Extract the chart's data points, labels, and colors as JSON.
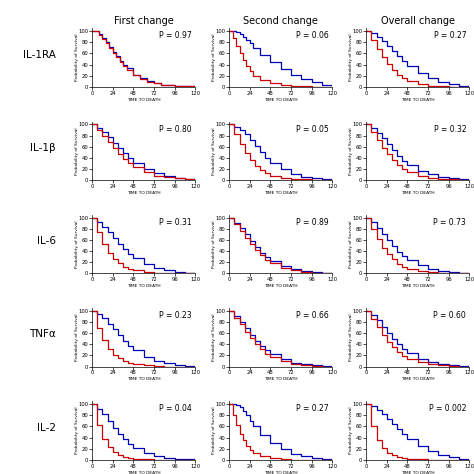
{
  "col_headers": [
    "First change",
    "Second change",
    "Overall change"
  ],
  "row_labels": [
    "IL-1RA",
    "IL-1β",
    "IL-6",
    "TNFα",
    "IL-2"
  ],
  "p_values": [
    [
      "P = 0.97",
      "P = 0.06",
      "P = 0.27"
    ],
    [
      "P = 0.80",
      "P = 0.05",
      "P = 0.32"
    ],
    [
      "P = 0.31",
      "P = 0.89",
      "P = 0.73"
    ],
    [
      "P = 0.23",
      "P = 0.66",
      "P = 0.60"
    ],
    [
      "P = 0.04",
      "P = 0.27",
      "P = 0.002"
    ]
  ],
  "blue_color": "#0000BB",
  "red_color": "#CC0000",
  "curves": {
    "IL-1RA_First": {
      "blue_x": [
        0,
        8,
        12,
        16,
        20,
        24,
        28,
        32,
        36,
        40,
        48,
        56,
        64,
        72,
        80,
        96,
        120
      ],
      "blue_y": [
        100,
        95,
        88,
        80,
        72,
        63,
        55,
        47,
        40,
        33,
        22,
        15,
        10,
        7,
        4,
        2,
        1
      ],
      "red_x": [
        0,
        8,
        12,
        16,
        20,
        24,
        28,
        32,
        36,
        40,
        48,
        56,
        64,
        72,
        80,
        96,
        120
      ],
      "red_y": [
        100,
        93,
        86,
        78,
        70,
        61,
        53,
        45,
        38,
        31,
        21,
        14,
        9,
        6,
        4,
        2,
        1
      ]
    },
    "IL-1RA_Second": {
      "blue_x": [
        0,
        4,
        8,
        12,
        16,
        20,
        24,
        28,
        36,
        48,
        60,
        72,
        84,
        96,
        108,
        120
      ],
      "blue_y": [
        100,
        100,
        98,
        95,
        90,
        84,
        78,
        70,
        58,
        45,
        32,
        22,
        14,
        8,
        4,
        2
      ],
      "red_x": [
        0,
        4,
        8,
        12,
        16,
        20,
        24,
        28,
        36,
        48,
        60,
        72,
        84,
        96,
        108,
        120
      ],
      "red_y": [
        100,
        88,
        74,
        60,
        48,
        38,
        28,
        20,
        12,
        6,
        3,
        1,
        1,
        0,
        0,
        0
      ]
    },
    "IL-1RA_Overall": {
      "blue_x": [
        0,
        6,
        12,
        18,
        24,
        30,
        36,
        42,
        48,
        60,
        72,
        84,
        96,
        108,
        120
      ],
      "blue_y": [
        100,
        96,
        90,
        83,
        74,
        65,
        55,
        46,
        37,
        24,
        15,
        9,
        5,
        2,
        1
      ],
      "red_x": [
        0,
        6,
        12,
        18,
        24,
        30,
        36,
        42,
        48,
        60,
        72,
        84,
        96,
        108,
        120
      ],
      "red_y": [
        100,
        84,
        68,
        54,
        41,
        31,
        22,
        15,
        10,
        5,
        2,
        1,
        0,
        0,
        0
      ]
    },
    "IL-1b_First": {
      "blue_x": [
        0,
        6,
        12,
        18,
        24,
        30,
        36,
        42,
        48,
        60,
        72,
        84,
        96,
        108,
        120
      ],
      "blue_y": [
        100,
        94,
        86,
        77,
        67,
        57,
        48,
        39,
        31,
        20,
        12,
        7,
        4,
        2,
        1
      ],
      "red_x": [
        0,
        6,
        12,
        18,
        24,
        30,
        36,
        42,
        48,
        60,
        72,
        84,
        96,
        108,
        120
      ],
      "red_y": [
        100,
        90,
        79,
        68,
        57,
        47,
        38,
        30,
        23,
        14,
        8,
        5,
        3,
        1,
        0
      ]
    },
    "IL-1b_Second": {
      "blue_x": [
        0,
        6,
        12,
        18,
        24,
        30,
        36,
        42,
        48,
        60,
        72,
        84,
        96,
        108,
        120
      ],
      "blue_y": [
        100,
        96,
        90,
        82,
        72,
        61,
        50,
        40,
        31,
        19,
        11,
        6,
        3,
        1,
        0
      ],
      "red_x": [
        0,
        6,
        12,
        18,
        24,
        30,
        36,
        42,
        48,
        60,
        72,
        84,
        96,
        108,
        120
      ],
      "red_y": [
        100,
        82,
        64,
        49,
        36,
        26,
        18,
        12,
        8,
        4,
        2,
        1,
        0,
        0,
        0
      ]
    },
    "IL-1b_Overall": {
      "blue_x": [
        0,
        6,
        12,
        18,
        24,
        30,
        36,
        42,
        48,
        60,
        72,
        84,
        96,
        108,
        120
      ],
      "blue_y": [
        100,
        93,
        85,
        75,
        64,
        54,
        44,
        35,
        27,
        17,
        10,
        6,
        3,
        1,
        0
      ],
      "red_x": [
        0,
        6,
        12,
        18,
        24,
        30,
        36,
        42,
        48,
        60,
        72,
        84,
        96,
        108,
        120
      ],
      "red_y": [
        100,
        86,
        72,
        58,
        46,
        36,
        27,
        20,
        14,
        8,
        4,
        2,
        1,
        0,
        0
      ]
    },
    "IL-6_First": {
      "blue_x": [
        0,
        6,
        12,
        18,
        24,
        30,
        36,
        42,
        48,
        60,
        72,
        84,
        96,
        108,
        120
      ],
      "blue_y": [
        100,
        93,
        84,
        74,
        63,
        53,
        43,
        34,
        27,
        16,
        9,
        5,
        2,
        1,
        0
      ],
      "red_x": [
        0,
        6,
        12,
        18,
        24,
        30,
        36,
        42,
        48,
        60,
        72,
        84,
        96,
        108,
        120
      ],
      "red_y": [
        100,
        74,
        53,
        37,
        26,
        18,
        12,
        8,
        5,
        2,
        1,
        0,
        0,
        0,
        0
      ]
    },
    "IL-6_Second": {
      "blue_x": [
        0,
        6,
        12,
        18,
        24,
        30,
        36,
        42,
        48,
        60,
        72,
        84,
        96,
        108,
        120
      ],
      "blue_y": [
        100,
        91,
        81,
        70,
        58,
        47,
        37,
        29,
        22,
        13,
        7,
        4,
        2,
        1,
        0
      ],
      "red_x": [
        0,
        6,
        12,
        18,
        24,
        30,
        36,
        42,
        48,
        60,
        72,
        84,
        96,
        108,
        120
      ],
      "red_y": [
        100,
        88,
        76,
        64,
        52,
        41,
        32,
        24,
        18,
        10,
        5,
        3,
        1,
        0,
        0
      ]
    },
    "IL-6_Overall": {
      "blue_x": [
        0,
        6,
        12,
        18,
        24,
        30,
        36,
        42,
        48,
        60,
        72,
        84,
        96,
        108,
        120
      ],
      "blue_y": [
        100,
        92,
        82,
        71,
        60,
        49,
        39,
        31,
        24,
        14,
        8,
        4,
        2,
        1,
        0
      ],
      "red_x": [
        0,
        6,
        12,
        18,
        24,
        30,
        36,
        42,
        48,
        60,
        72,
        84,
        96,
        108,
        120
      ],
      "red_y": [
        100,
        79,
        61,
        46,
        34,
        25,
        17,
        12,
        8,
        4,
        2,
        1,
        0,
        0,
        0
      ]
    },
    "TNFa_First": {
      "blue_x": [
        0,
        6,
        12,
        18,
        24,
        30,
        36,
        42,
        48,
        60,
        72,
        84,
        96,
        108,
        120
      ],
      "blue_y": [
        100,
        95,
        87,
        77,
        67,
        56,
        46,
        37,
        29,
        18,
        10,
        6,
        3,
        1,
        0
      ],
      "red_x": [
        0,
        6,
        12,
        18,
        24,
        30,
        36,
        42,
        48,
        60,
        72,
        84,
        96,
        108,
        120
      ],
      "red_y": [
        100,
        70,
        47,
        32,
        21,
        15,
        10,
        7,
        5,
        2,
        1,
        0,
        0,
        0,
        0
      ]
    },
    "TNFa_Second": {
      "blue_x": [
        0,
        6,
        12,
        18,
        24,
        30,
        36,
        42,
        48,
        60,
        72,
        84,
        96,
        108,
        120
      ],
      "blue_y": [
        100,
        91,
        81,
        69,
        57,
        46,
        37,
        29,
        22,
        13,
        7,
        4,
        2,
        1,
        0
      ],
      "red_x": [
        0,
        6,
        12,
        18,
        24,
        30,
        36,
        42,
        48,
        60,
        72,
        84,
        96,
        108,
        120
      ],
      "red_y": [
        100,
        88,
        76,
        63,
        51,
        40,
        31,
        23,
        17,
        10,
        5,
        3,
        1,
        0,
        0
      ]
    },
    "TNFa_Overall": {
      "blue_x": [
        0,
        6,
        12,
        18,
        24,
        30,
        36,
        42,
        48,
        60,
        72,
        84,
        96,
        108,
        120
      ],
      "blue_y": [
        100,
        92,
        83,
        72,
        61,
        50,
        40,
        31,
        24,
        14,
        8,
        4,
        2,
        1,
        0
      ],
      "red_x": [
        0,
        6,
        12,
        18,
        24,
        30,
        36,
        42,
        48,
        60,
        72,
        84,
        96,
        108,
        120
      ],
      "red_y": [
        100,
        85,
        71,
        57,
        45,
        35,
        26,
        19,
        14,
        8,
        4,
        2,
        1,
        0,
        0
      ]
    },
    "IL-2_First": {
      "blue_x": [
        0,
        6,
        12,
        18,
        24,
        30,
        36,
        42,
        48,
        60,
        72,
        84,
        96,
        108,
        120
      ],
      "blue_y": [
        100,
        92,
        82,
        70,
        58,
        47,
        37,
        29,
        21,
        13,
        7,
        4,
        2,
        1,
        0
      ],
      "red_x": [
        0,
        6,
        12,
        18,
        24,
        30,
        36,
        42,
        48,
        60,
        72,
        84,
        96,
        108,
        120
      ],
      "red_y": [
        100,
        62,
        38,
        23,
        14,
        8,
        5,
        3,
        2,
        1,
        0,
        0,
        0,
        0,
        0
      ]
    },
    "IL-2_Second": {
      "blue_x": [
        0,
        4,
        8,
        12,
        16,
        20,
        24,
        28,
        36,
        48,
        60,
        72,
        84,
        96,
        108,
        120
      ],
      "blue_y": [
        100,
        100,
        98,
        95,
        88,
        80,
        70,
        60,
        45,
        30,
        19,
        11,
        6,
        3,
        1,
        0
      ],
      "red_x": [
        0,
        4,
        8,
        12,
        16,
        20,
        24,
        28,
        36,
        48,
        60,
        72,
        84,
        96,
        108,
        120
      ],
      "red_y": [
        100,
        80,
        62,
        47,
        35,
        25,
        18,
        12,
        7,
        3,
        1,
        0,
        0,
        0,
        0,
        0
      ]
    },
    "IL-2_Overall": {
      "blue_x": [
        0,
        6,
        12,
        18,
        24,
        30,
        36,
        42,
        48,
        60,
        72,
        84,
        96,
        108,
        120
      ],
      "blue_y": [
        100,
        96,
        90,
        83,
        74,
        65,
        55,
        46,
        37,
        24,
        15,
        9,
        5,
        2,
        1
      ],
      "red_x": [
        0,
        6,
        12,
        18,
        24,
        30,
        36,
        42,
        48,
        60,
        72,
        84,
        96,
        108,
        120
      ],
      "red_y": [
        100,
        60,
        36,
        21,
        13,
        8,
        5,
        3,
        2,
        1,
        0,
        0,
        0,
        0,
        0
      ]
    }
  }
}
